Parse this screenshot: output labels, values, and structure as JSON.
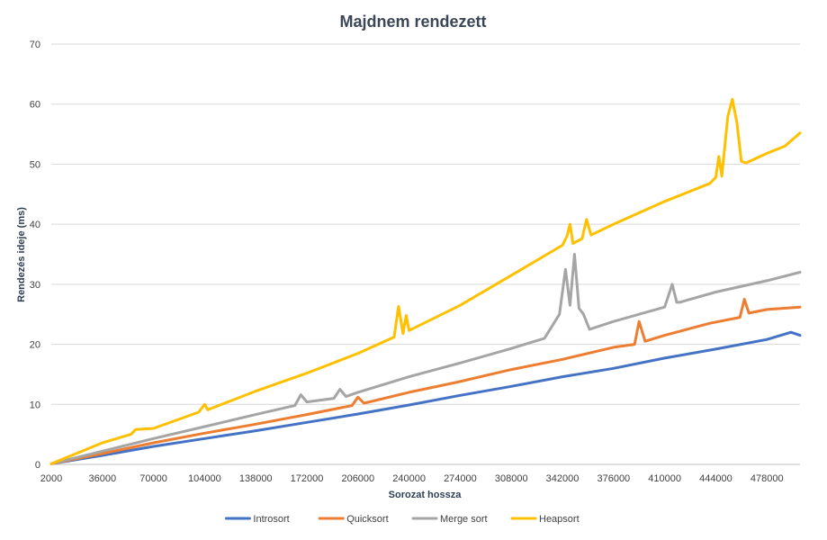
{
  "chart_data": {
    "type": "line",
    "title": "Majdnem rendezett",
    "xlabel": "Sorozat hossza",
    "ylabel": "Rendezés ideje (ms)",
    "xlim": [
      2000,
      500000
    ],
    "ylim": [
      0,
      70
    ],
    "yticks": [
      "0",
      "10",
      "20",
      "30",
      "40",
      "50",
      "60",
      "70"
    ],
    "xticks": [
      "2000",
      "36000",
      "70000",
      "104000",
      "138000",
      "172000",
      "206000",
      "240000",
      "274000",
      "308000",
      "342000",
      "376000",
      "410000",
      "444000",
      "478000"
    ],
    "grid": "horizontal",
    "legend_position": "bottom",
    "series": [
      {
        "name": "Introsort",
        "color": "#4472c4",
        "x": [
          2000,
          36000,
          70000,
          104000,
          138000,
          172000,
          206000,
          240000,
          274000,
          308000,
          342000,
          376000,
          410000,
          444000,
          478000,
          494000,
          500000
        ],
        "values": [
          0.1,
          1.5,
          3.0,
          4.3,
          5.6,
          7.0,
          8.4,
          9.9,
          11.5,
          13.0,
          14.6,
          16.0,
          17.7,
          19.2,
          20.8,
          22.0,
          21.5
        ]
      },
      {
        "name": "Quicksort",
        "color": "#ed7d31",
        "x": [
          2000,
          36000,
          70000,
          104000,
          138000,
          172000,
          202000,
          206000,
          210000,
          240000,
          274000,
          308000,
          342000,
          376000,
          390000,
          393000,
          397000,
          410000,
          440000,
          460000,
          463000,
          466000,
          478000,
          500000
        ],
        "values": [
          0.1,
          1.8,
          3.6,
          5.2,
          6.7,
          8.3,
          9.8,
          11.2,
          10.2,
          12.0,
          13.8,
          15.8,
          17.5,
          19.5,
          20.0,
          23.8,
          20.5,
          21.5,
          23.5,
          24.5,
          27.5,
          25.2,
          25.8,
          26.2
        ]
      },
      {
        "name": "Merge sort",
        "color": "#a5a5a5",
        "x": [
          2000,
          36000,
          70000,
          104000,
          138000,
          164000,
          168000,
          172000,
          190000,
          194000,
          198000,
          206000,
          240000,
          274000,
          308000,
          330000,
          340000,
          344000,
          347000,
          350000,
          353000,
          356000,
          360000,
          376000,
          410000,
          415000,
          418000,
          420000,
          444000,
          478000,
          500000
        ],
        "values": [
          0.1,
          2.2,
          4.3,
          6.3,
          8.3,
          9.8,
          11.6,
          10.4,
          11.0,
          12.5,
          11.3,
          12.0,
          14.6,
          16.9,
          19.3,
          21.0,
          25.0,
          32.5,
          26.5,
          35.0,
          26.0,
          25.0,
          22.5,
          23.8,
          26.2,
          30.0,
          27.0,
          27.0,
          28.7,
          30.6,
          32.0
        ]
      },
      {
        "name": "Heapsort",
        "color": "#ffc000",
        "x": [
          2000,
          36000,
          55000,
          58000,
          70000,
          100000,
          104000,
          106000,
          138000,
          172000,
          206000,
          230000,
          233000,
          236000,
          238000,
          240000,
          274000,
          308000,
          342000,
          345000,
          347000,
          349000,
          355000,
          358000,
          361000,
          376000,
          410000,
          440000,
          444000,
          446000,
          448000,
          452000,
          455000,
          458000,
          461000,
          464000,
          478000,
          490000,
          500000
        ],
        "values": [
          0.1,
          3.6,
          5.0,
          5.8,
          6.0,
          8.7,
          10.0,
          9.1,
          12.2,
          15.2,
          18.5,
          21.2,
          26.3,
          21.8,
          24.8,
          22.3,
          26.5,
          31.5,
          36.5,
          38.0,
          40.0,
          36.8,
          37.6,
          40.8,
          38.2,
          40.0,
          43.8,
          46.8,
          47.8,
          51.3,
          48.0,
          58.0,
          60.8,
          57.0,
          50.5,
          50.2,
          51.8,
          53.0,
          55.2
        ]
      }
    ]
  }
}
